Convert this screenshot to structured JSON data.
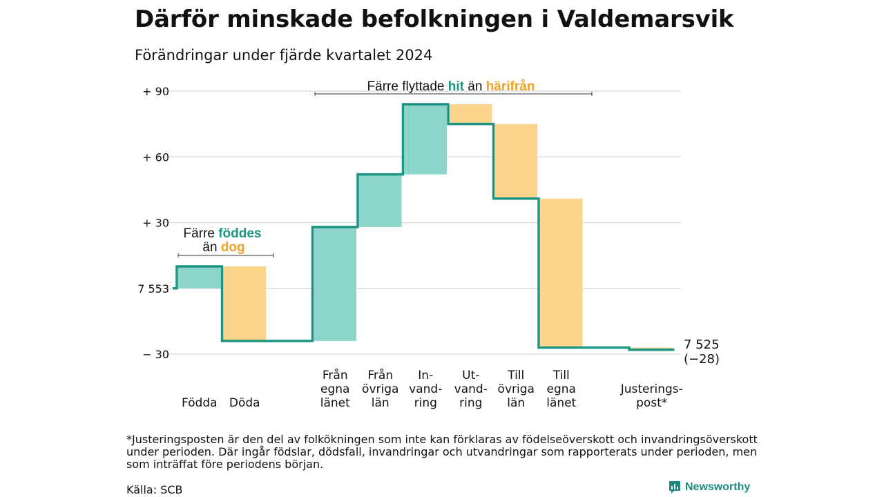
{
  "title": "Därför minskade befolkningen i Valdemarsvik",
  "subtitle": "Förändringar under fjärde kvartalet 2024",
  "footnote": "*Justeringsposten är den del av folkökningen som inte kan förklaras av födelseöverskott och invandringsöverskott under perioden. Där ingår födslar, dödsfall, invandringar och utvandringar som rapporterats under perioden, men som inträffat före periodens början.",
  "source": "Källa: SCB",
  "brand": "Newsworthy",
  "colors": {
    "increase": "#8dd5cb",
    "decrease": "#fbd48b",
    "line": "#1e9483",
    "accent_orange": "#f0a127",
    "accent_teal": "#1e9483",
    "grid": "#dddddd"
  },
  "chart_data": {
    "type": "waterfall",
    "start_value": 7553,
    "end_value": 7525,
    "end_label": [
      "7 525",
      "(−28)"
    ],
    "y_axis": {
      "min": -30,
      "max": 90,
      "baseline_label": "7 553",
      "ticks": [
        {
          "value": 90,
          "label": "+ 90"
        },
        {
          "value": 60,
          "label": "+ 60"
        },
        {
          "value": 30,
          "label": "+ 30"
        },
        {
          "value": 0,
          "label": "7 553"
        },
        {
          "value": -30,
          "label": "− 30"
        }
      ]
    },
    "steps": [
      {
        "label": [
          "Födda"
        ],
        "change": 10
      },
      {
        "label": [
          "Döda"
        ],
        "change": -34
      },
      {
        "label": [],
        "change": 0
      },
      {
        "label": [
          "Från",
          "egna",
          "länet"
        ],
        "change": 52
      },
      {
        "label": [
          "Från",
          "övriga",
          "län"
        ],
        "change": 24
      },
      {
        "label": [
          "In-",
          "vand-",
          "ring"
        ],
        "change": 32
      },
      {
        "label": [
          "Ut-",
          "vand-",
          "ring"
        ],
        "change": -9
      },
      {
        "label": [
          "Till",
          "övriga",
          "län"
        ],
        "change": -34
      },
      {
        "label": [
          "Till",
          "egna",
          "länet"
        ],
        "change": -68
      },
      {
        "label": [],
        "change": 0
      },
      {
        "label": [
          "Justerings-",
          "post*"
        ],
        "change": -1
      }
    ],
    "annotations": [
      {
        "id": "birth",
        "line1_plain": "Färre ",
        "line1_accent": "föddes",
        "line2_plain": "än ",
        "line2_accent": "dog"
      },
      {
        "id": "migration",
        "plain1": "Färre flyttade ",
        "accent1": "hit",
        "plain2": " än ",
        "accent2": "härifrån"
      }
    ]
  }
}
